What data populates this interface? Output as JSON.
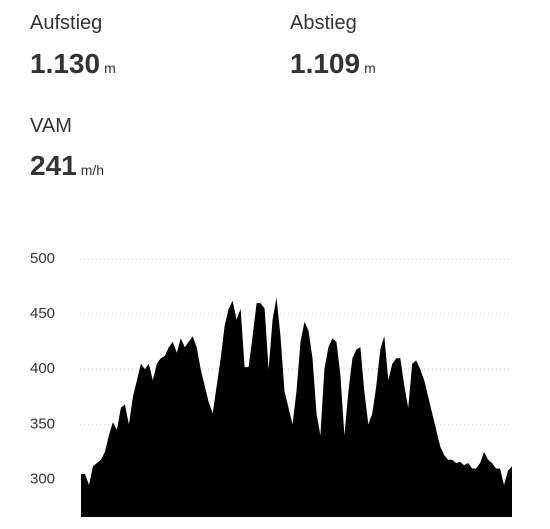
{
  "stats": [
    {
      "label": "Aufstieg",
      "value": "1.130",
      "unit": "m"
    },
    {
      "label": "Abstieg",
      "value": "1.109",
      "unit": "m"
    },
    {
      "label": "VAM",
      "value": "241",
      "unit": "m/h"
    }
  ],
  "chart_data": {
    "type": "area",
    "color": "#000000",
    "grid": true,
    "ylim": [
      266,
      500
    ],
    "yticks": [
      300,
      350,
      400,
      450,
      500
    ],
    "values": [
      305,
      305,
      295,
      312,
      315,
      318,
      325,
      340,
      352,
      345,
      365,
      368,
      350,
      375,
      390,
      405,
      400,
      405,
      390,
      405,
      410,
      412,
      420,
      425,
      415,
      428,
      420,
      425,
      430,
      420,
      400,
      385,
      370,
      360,
      385,
      410,
      440,
      455,
      462,
      445,
      455,
      402,
      402,
      430,
      460,
      460,
      455,
      400,
      445,
      465,
      430,
      380,
      365,
      350,
      380,
      425,
      443,
      435,
      410,
      360,
      340,
      400,
      420,
      428,
      425,
      395,
      340,
      380,
      410,
      418,
      420,
      380,
      350,
      360,
      385,
      418,
      430,
      390,
      405,
      410,
      410,
      385,
      365,
      405,
      408,
      400,
      390,
      375,
      360,
      345,
      330,
      322,
      318,
      318,
      315,
      316,
      313,
      315,
      310,
      310,
      315,
      325,
      318,
      315,
      310,
      310,
      295,
      308,
      312
    ]
  }
}
